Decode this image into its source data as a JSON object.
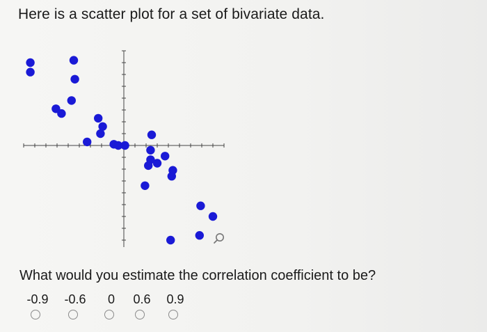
{
  "prompt": {
    "text": "Here is a scatter plot for a set of bivariate data."
  },
  "question": {
    "text": "What would you estimate the correlation coefficient to be?"
  },
  "choices": [
    {
      "label": "-0.9"
    },
    {
      "label": "-0.6"
    },
    {
      "label": "0"
    },
    {
      "label": "0.6"
    },
    {
      "label": "0.9"
    }
  ],
  "icons": {
    "zoom": "magnifier-icon"
  },
  "colors": {
    "point": "#1a1ad6",
    "axis": "#444444",
    "radio_border": "#8a8a8a"
  },
  "chart_data": {
    "type": "scatter",
    "title": "",
    "xlabel": "",
    "ylabel": "",
    "xlim": [
      -9.0,
      9.0
    ],
    "ylim": [
      -8.0,
      8.0
    ],
    "grid": false,
    "points": [
      {
        "x": -8.4,
        "y": 7.0
      },
      {
        "x": -8.4,
        "y": 6.2
      },
      {
        "x": -4.5,
        "y": 7.2
      },
      {
        "x": -4.4,
        "y": 5.6
      },
      {
        "x": -4.7,
        "y": 3.8
      },
      {
        "x": -6.1,
        "y": 3.1
      },
      {
        "x": -5.6,
        "y": 2.7
      },
      {
        "x": -2.3,
        "y": 2.3
      },
      {
        "x": -1.9,
        "y": 1.6
      },
      {
        "x": -2.1,
        "y": 1.0
      },
      {
        "x": -3.3,
        "y": 0.3
      },
      {
        "x": -0.9,
        "y": 0.1
      },
      {
        "x": -0.5,
        "y": 0.0
      },
      {
        "x": 0.1,
        "y": 0.0
      },
      {
        "x": 2.5,
        "y": 0.9
      },
      {
        "x": 2.4,
        "y": -0.4
      },
      {
        "x": 3.7,
        "y": -0.9
      },
      {
        "x": 2.4,
        "y": -1.2
      },
      {
        "x": 2.2,
        "y": -1.7
      },
      {
        "x": 3.0,
        "y": -1.5
      },
      {
        "x": 4.4,
        "y": -2.1
      },
      {
        "x": 4.3,
        "y": -2.6
      },
      {
        "x": 1.9,
        "y": -3.4
      },
      {
        "x": 6.9,
        "y": -5.1
      },
      {
        "x": 8.0,
        "y": -6.0
      },
      {
        "x": 4.2,
        "y": -8.0
      },
      {
        "x": 6.8,
        "y": -7.6
      }
    ]
  }
}
